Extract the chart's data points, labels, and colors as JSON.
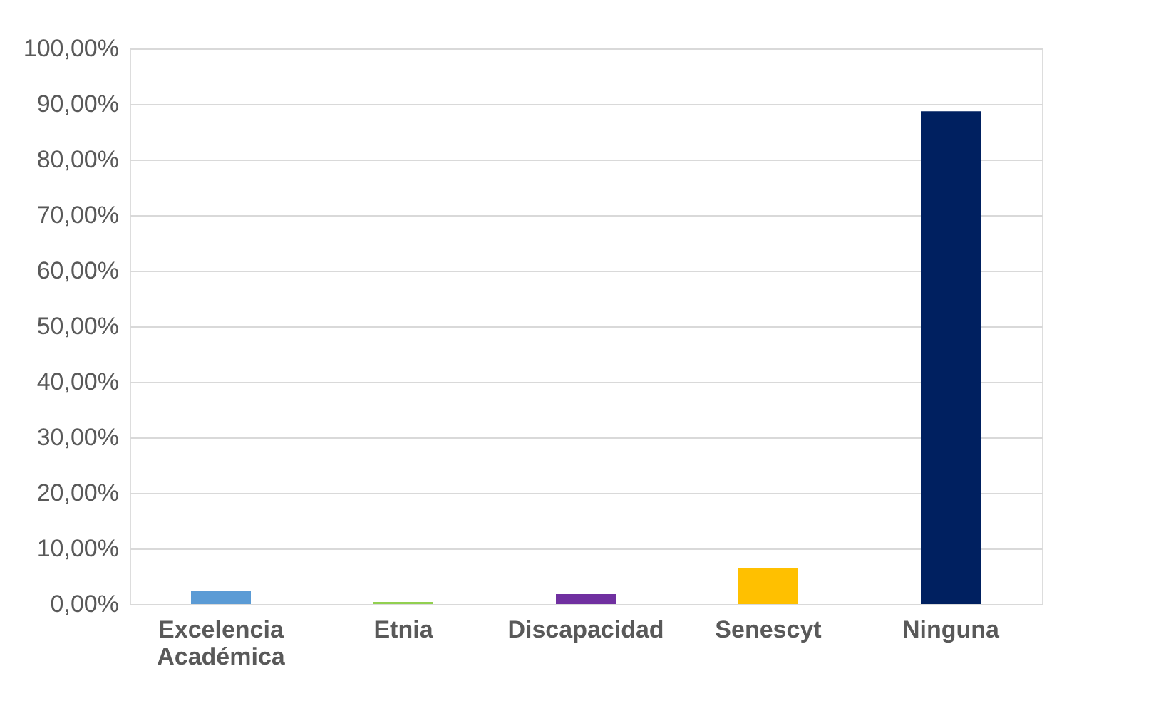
{
  "chart_data": {
    "type": "bar",
    "categories": [
      "Excelencia Académica",
      "Etnia",
      "Discapacidad",
      "Senescyt",
      "Ninguna"
    ],
    "values": [
      2.3,
      0.4,
      1.8,
      6.4,
      88.7
    ],
    "colors": [
      "#5b9bd5",
      "#92d050",
      "#7030a0",
      "#ffc000",
      "#002060"
    ],
    "ylim": [
      0,
      100
    ],
    "yticks": [
      {
        "value": 0,
        "label": "0,00%"
      },
      {
        "value": 10,
        "label": "10,00%"
      },
      {
        "value": 20,
        "label": "20,00%"
      },
      {
        "value": 30,
        "label": "30,00%"
      },
      {
        "value": 40,
        "label": "40,00%"
      },
      {
        "value": 50,
        "label": "50,00%"
      },
      {
        "value": 60,
        "label": "60,00%"
      },
      {
        "value": 70,
        "label": "70,00%"
      },
      {
        "value": 80,
        "label": "80,00%"
      },
      {
        "value": 90,
        "label": "90,00%"
      },
      {
        "value": 100,
        "label": "100,00%"
      }
    ],
    "grid": "y"
  }
}
